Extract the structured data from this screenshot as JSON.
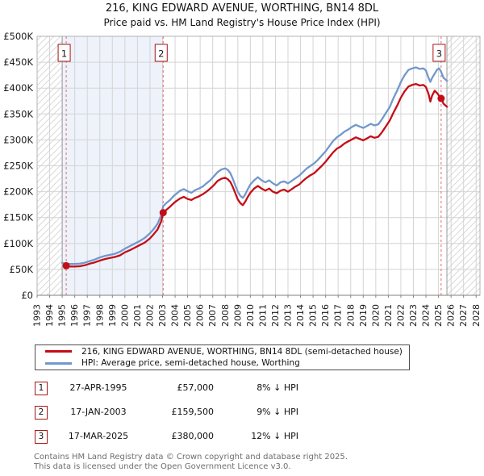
{
  "title": "216, KING EDWARD AVENUE, WORTHING, BN14 8DL",
  "subtitle": "Price paid vs. HM Land Registry's House Price Index (HPI)",
  "colors": {
    "price_line": "#c40d17",
    "hpi_line": "#7298cc",
    "sale_marker": "#c40d17",
    "dashed_line": "#e06b6b",
    "owned_fill": "#edf2fb",
    "grid": "#d4d4d4",
    "hatch": "#d9d9d9",
    "plot_border": "#b3b3b3",
    "axis_line": "#808080",
    "data_bound_line": "#999999",
    "box_border": "#a81515"
  },
  "chart_data": {
    "type": "line",
    "xlim": [
      1993,
      2028.3
    ],
    "ylim": [
      0,
      500000
    ],
    "grid": true,
    "x_axis": {
      "tick_years": [
        1993,
        1994,
        1995,
        1996,
        1997,
        1998,
        1999,
        2000,
        2001,
        2002,
        2003,
        2004,
        2005,
        2006,
        2007,
        2008,
        2009,
        2010,
        2011,
        2012,
        2013,
        2014,
        2015,
        2016,
        2017,
        2018,
        2019,
        2020,
        2021,
        2022,
        2023,
        2024,
        2025,
        2026,
        2027,
        2028
      ]
    },
    "y_axis": {
      "tick_values_k": [
        0,
        50,
        100,
        150,
        200,
        250,
        300,
        350,
        400,
        450,
        500
      ],
      "tick_labels": [
        "£0",
        "£50K",
        "£100K",
        "£150K",
        "£200K",
        "£250K",
        "£300K",
        "£350K",
        "£400K",
        "£450K",
        "£500K"
      ]
    },
    "hpi_data_start_year": 1995.0,
    "data_end_year": 2025.67,
    "shaded_ownership_region": [
      1995.0,
      2003.05
    ],
    "hatched_regions": [
      [
        1993,
        1995.0
      ],
      [
        2025.67,
        2028.3
      ]
    ],
    "series": [
      {
        "name": "HPI: Average price, semi-detached house, Worthing",
        "color_key": "hpi_line",
        "points_year_priceK": [
          [
            1995.0,
            62
          ],
          [
            1995.32,
            61.5
          ],
          [
            1995.6,
            60.5
          ],
          [
            1996.0,
            60.5
          ],
          [
            1996.4,
            61
          ],
          [
            1996.8,
            63
          ],
          [
            1997.2,
            66
          ],
          [
            1997.6,
            69
          ],
          [
            1998.0,
            73
          ],
          [
            1998.4,
            76
          ],
          [
            1998.8,
            78
          ],
          [
            1999.2,
            80
          ],
          [
            1999.6,
            84
          ],
          [
            2000.0,
            90
          ],
          [
            2000.4,
            95
          ],
          [
            2000.8,
            100
          ],
          [
            2001.2,
            105
          ],
          [
            2001.6,
            111
          ],
          [
            2002.0,
            120
          ],
          [
            2002.3,
            128
          ],
          [
            2002.6,
            138
          ],
          [
            2002.9,
            155
          ],
          [
            2003.05,
            172
          ],
          [
            2003.3,
            178
          ],
          [
            2003.6,
            184
          ],
          [
            2003.9,
            192
          ],
          [
            2004.1,
            196
          ],
          [
            2004.4,
            202
          ],
          [
            2004.7,
            205
          ],
          [
            2005.0,
            201
          ],
          [
            2005.3,
            198
          ],
          [
            2005.6,
            203
          ],
          [
            2005.9,
            206
          ],
          [
            2006.2,
            210
          ],
          [
            2006.5,
            216
          ],
          [
            2006.8,
            222
          ],
          [
            2007.1,
            230
          ],
          [
            2007.4,
            238
          ],
          [
            2007.7,
            243
          ],
          [
            2008.0,
            245
          ],
          [
            2008.2,
            242
          ],
          [
            2008.4,
            236
          ],
          [
            2008.6,
            225
          ],
          [
            2008.8,
            212
          ],
          [
            2009.0,
            200
          ],
          [
            2009.2,
            192
          ],
          [
            2009.4,
            188
          ],
          [
            2009.6,
            195
          ],
          [
            2009.8,
            205
          ],
          [
            2010.0,
            214
          ],
          [
            2010.3,
            222
          ],
          [
            2010.6,
            228
          ],
          [
            2010.9,
            222
          ],
          [
            2011.2,
            218
          ],
          [
            2011.5,
            222
          ],
          [
            2011.8,
            216
          ],
          [
            2012.1,
            212
          ],
          [
            2012.4,
            218
          ],
          [
            2012.7,
            220
          ],
          [
            2013.0,
            216
          ],
          [
            2013.3,
            221
          ],
          [
            2013.6,
            226
          ],
          [
            2013.9,
            231
          ],
          [
            2014.2,
            238
          ],
          [
            2014.5,
            245
          ],
          [
            2014.8,
            250
          ],
          [
            2015.1,
            255
          ],
          [
            2015.4,
            262
          ],
          [
            2015.7,
            270
          ],
          [
            2016.0,
            278
          ],
          [
            2016.3,
            288
          ],
          [
            2016.6,
            298
          ],
          [
            2016.9,
            305
          ],
          [
            2017.2,
            310
          ],
          [
            2017.5,
            316
          ],
          [
            2017.8,
            320
          ],
          [
            2018.1,
            325
          ],
          [
            2018.4,
            329
          ],
          [
            2018.7,
            326
          ],
          [
            2019.0,
            323
          ],
          [
            2019.3,
            327
          ],
          [
            2019.6,
            331
          ],
          [
            2019.9,
            328
          ],
          [
            2020.2,
            330
          ],
          [
            2020.5,
            340
          ],
          [
            2020.8,
            352
          ],
          [
            2021.1,
            363
          ],
          [
            2021.4,
            380
          ],
          [
            2021.7,
            395
          ],
          [
            2022.0,
            412
          ],
          [
            2022.3,
            425
          ],
          [
            2022.6,
            435
          ],
          [
            2022.9,
            438
          ],
          [
            2023.2,
            440
          ],
          [
            2023.5,
            437
          ],
          [
            2023.8,
            438
          ],
          [
            2024.0,
            434
          ],
          [
            2024.2,
            420
          ],
          [
            2024.35,
            412
          ],
          [
            2024.5,
            420
          ],
          [
            2024.7,
            428
          ],
          [
            2024.9,
            436
          ],
          [
            2025.05,
            438
          ],
          [
            2025.2,
            432
          ],
          [
            2025.4,
            420
          ],
          [
            2025.67,
            414
          ]
        ]
      },
      {
        "name": "216, KING EDWARD AVENUE, WORTHING, BN14 8DL (semi-detached house)",
        "color_key": "price_line",
        "points_year_priceK": [
          [
            1995.32,
            57
          ],
          [
            1995.6,
            55.5
          ],
          [
            1996.0,
            55.5
          ],
          [
            1996.4,
            56
          ],
          [
            1996.8,
            58
          ],
          [
            1997.2,
            61
          ],
          [
            1997.6,
            63.5
          ],
          [
            1998.0,
            67
          ],
          [
            1998.4,
            70
          ],
          [
            1998.8,
            72
          ],
          [
            1999.2,
            74
          ],
          [
            1999.6,
            77
          ],
          [
            2000.0,
            83
          ],
          [
            2000.4,
            87
          ],
          [
            2000.8,
            92
          ],
          [
            2001.2,
            97
          ],
          [
            2001.6,
            102
          ],
          [
            2002.0,
            110
          ],
          [
            2002.3,
            118
          ],
          [
            2002.6,
            127
          ],
          [
            2002.9,
            143
          ],
          [
            2003.05,
            159.5
          ],
          [
            2003.3,
            165
          ],
          [
            2003.6,
            171
          ],
          [
            2003.9,
            178
          ],
          [
            2004.1,
            182
          ],
          [
            2004.4,
            187
          ],
          [
            2004.7,
            190
          ],
          [
            2005.0,
            186
          ],
          [
            2005.3,
            184
          ],
          [
            2005.6,
            188
          ],
          [
            2005.9,
            191
          ],
          [
            2006.2,
            195
          ],
          [
            2006.5,
            200
          ],
          [
            2006.8,
            206
          ],
          [
            2007.1,
            213
          ],
          [
            2007.4,
            221
          ],
          [
            2007.7,
            225
          ],
          [
            2008.0,
            227
          ],
          [
            2008.2,
            224
          ],
          [
            2008.4,
            219
          ],
          [
            2008.6,
            209
          ],
          [
            2008.8,
            197
          ],
          [
            2009.0,
            185
          ],
          [
            2009.2,
            178
          ],
          [
            2009.4,
            174
          ],
          [
            2009.6,
            181
          ],
          [
            2009.8,
            190
          ],
          [
            2010.0,
            198
          ],
          [
            2010.3,
            206
          ],
          [
            2010.6,
            211
          ],
          [
            2010.9,
            206
          ],
          [
            2011.2,
            202
          ],
          [
            2011.5,
            206
          ],
          [
            2011.8,
            200
          ],
          [
            2012.1,
            197
          ],
          [
            2012.4,
            202
          ],
          [
            2012.7,
            204
          ],
          [
            2013.0,
            200
          ],
          [
            2013.3,
            205
          ],
          [
            2013.6,
            210
          ],
          [
            2013.9,
            214
          ],
          [
            2014.2,
            221
          ],
          [
            2014.5,
            227
          ],
          [
            2014.8,
            232
          ],
          [
            2015.1,
            236
          ],
          [
            2015.4,
            243
          ],
          [
            2015.7,
            250
          ],
          [
            2016.0,
            258
          ],
          [
            2016.3,
            267
          ],
          [
            2016.6,
            276
          ],
          [
            2016.9,
            283
          ],
          [
            2017.2,
            287
          ],
          [
            2017.5,
            293
          ],
          [
            2017.8,
            297
          ],
          [
            2018.1,
            301
          ],
          [
            2018.4,
            305
          ],
          [
            2018.7,
            302
          ],
          [
            2019.0,
            299
          ],
          [
            2019.3,
            303
          ],
          [
            2019.6,
            307
          ],
          [
            2019.9,
            304
          ],
          [
            2020.2,
            306
          ],
          [
            2020.5,
            315
          ],
          [
            2020.8,
            326
          ],
          [
            2021.1,
            337
          ],
          [
            2021.4,
            352
          ],
          [
            2021.7,
            366
          ],
          [
            2022.0,
            382
          ],
          [
            2022.3,
            394
          ],
          [
            2022.6,
            403
          ],
          [
            2022.9,
            406
          ],
          [
            2023.2,
            408
          ],
          [
            2023.5,
            405
          ],
          [
            2023.8,
            406
          ],
          [
            2024.0,
            402
          ],
          [
            2024.2,
            389
          ],
          [
            2024.35,
            374
          ],
          [
            2024.5,
            386
          ],
          [
            2024.7,
            395
          ],
          [
            2024.9,
            390
          ],
          [
            2025.05,
            385
          ],
          [
            2025.2,
            380
          ],
          [
            2025.4,
            370
          ],
          [
            2025.67,
            364
          ]
        ]
      }
    ],
    "sales": [
      {
        "num": "1",
        "year": 1995.32,
        "priceK": 57
      },
      {
        "num": "2",
        "year": 2003.05,
        "priceK": 159.5
      },
      {
        "num": "3",
        "year": 2025.21,
        "priceK": 380
      }
    ]
  },
  "legend": {
    "items": [
      {
        "label": "216, KING EDWARD AVENUE, WORTHING, BN14 8DL (semi-detached house)",
        "color_key": "price_line"
      },
      {
        "label": "HPI: Average price, semi-detached house, Worthing",
        "color_key": "hpi_line"
      }
    ]
  },
  "table": {
    "rows": [
      {
        "num": "1",
        "date": "27-APR-1995",
        "price": "£57,000",
        "delta": "8% ↓ HPI"
      },
      {
        "num": "2",
        "date": "17-JAN-2003",
        "price": "£159,500",
        "delta": "9% ↓ HPI"
      },
      {
        "num": "3",
        "date": "17-MAR-2025",
        "price": "£380,000",
        "delta": "12% ↓ HPI"
      }
    ]
  },
  "footer": {
    "line1": "Contains HM Land Registry data © Crown copyright and database right 2025.",
    "line2": "This data is licensed under the Open Government Licence v3.0."
  }
}
